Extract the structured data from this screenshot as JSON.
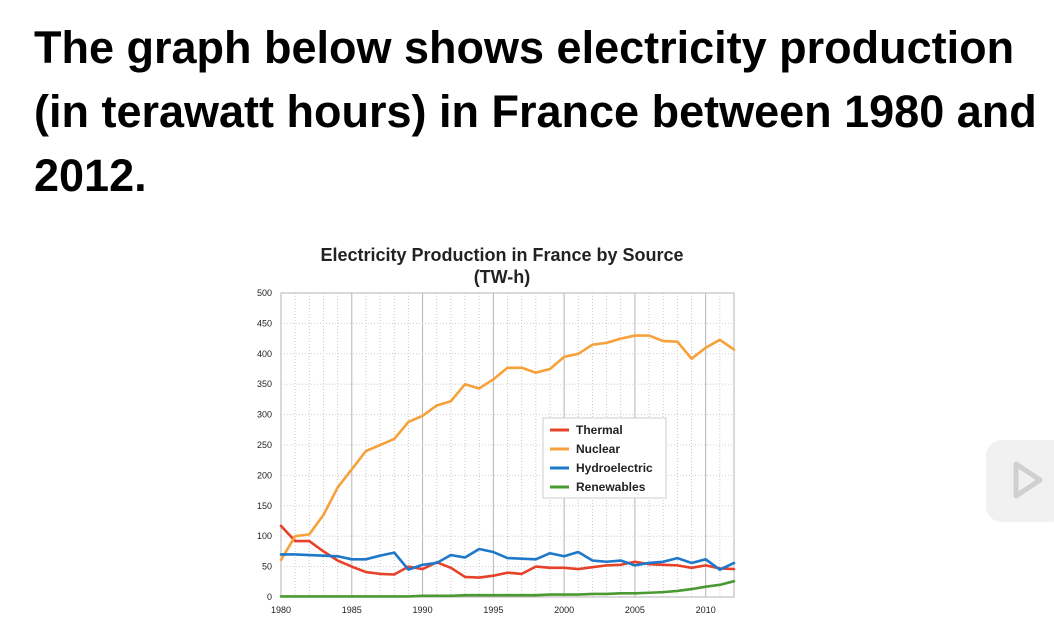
{
  "slide": {
    "heading": "The graph below shows electricity production (in terawatt hours) in France between 1980 and 2012."
  },
  "icons": {
    "side_widget": "play-icon"
  },
  "chart_data": {
    "type": "line",
    "title": "Electricity Production in France by Source",
    "subtitle": "(TW-h)",
    "xlabel": "",
    "ylabel": "",
    "xlim": [
      1980,
      2012
    ],
    "ylim": [
      0,
      500
    ],
    "x_ticks": [
      1980,
      1985,
      1990,
      1995,
      2000,
      2005,
      2010
    ],
    "y_ticks": [
      0,
      50,
      100,
      150,
      200,
      250,
      300,
      350,
      400,
      450,
      500
    ],
    "grid": true,
    "legend_position": "center-right",
    "x": [
      1980,
      1981,
      1982,
      1983,
      1984,
      1985,
      1986,
      1987,
      1988,
      1989,
      1990,
      1991,
      1992,
      1993,
      1994,
      1995,
      1996,
      1997,
      1998,
      1999,
      2000,
      2001,
      2002,
      2003,
      2004,
      2005,
      2006,
      2007,
      2008,
      2009,
      2010,
      2011,
      2012
    ],
    "series": [
      {
        "name": "Thermal",
        "color": "#e8412a",
        "values": [
          117,
          92,
          92,
          75,
          60,
          50,
          41,
          38,
          37,
          50,
          46,
          57,
          48,
          33,
          32,
          35,
          40,
          38,
          50,
          48,
          48,
          46,
          49,
          52,
          53,
          58,
          54,
          53,
          52,
          48,
          52,
          47,
          46
        ]
      },
      {
        "name": "Nuclear",
        "color": "#f7a13a",
        "values": [
          61,
          100,
          103,
          135,
          180,
          210,
          240,
          250,
          260,
          288,
          298,
          315,
          322,
          350,
          343,
          358,
          377,
          377,
          369,
          375,
          395,
          400,
          415,
          418,
          425,
          430,
          430,
          421,
          420,
          392,
          410,
          423,
          407
        ]
      },
      {
        "name": "Hydroelectric",
        "color": "#1e78c9",
        "values": [
          70,
          70,
          69,
          68,
          67,
          62,
          62,
          68,
          73,
          45,
          53,
          56,
          69,
          65,
          79,
          74,
          64,
          63,
          62,
          72,
          67,
          74,
          60,
          58,
          60,
          52,
          56,
          58,
          64,
          56,
          62,
          45,
          56
        ]
      },
      {
        "name": "Renewables",
        "color": "#4a9a32",
        "values": [
          1,
          1,
          1,
          1,
          1,
          1,
          1,
          1,
          1,
          1,
          2,
          2,
          2,
          3,
          3,
          3,
          3,
          3,
          3,
          4,
          4,
          4,
          5,
          5,
          6,
          6,
          7,
          8,
          10,
          13,
          17,
          20,
          26
        ]
      }
    ]
  }
}
